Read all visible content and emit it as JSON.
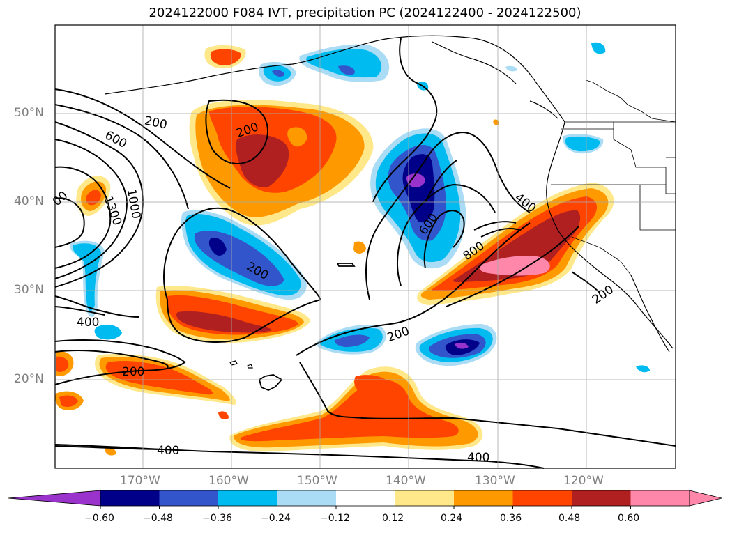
{
  "title": "2024122000 F084 IVT, precipitation PC (2024122400 - 2024122500)",
  "lat_labels": [
    "50°N",
    "40°N",
    "30°N",
    "20°N"
  ],
  "lon_labels": [
    "170°W",
    "160°W",
    "150°W",
    "140°W",
    "130°W",
    "120°W"
  ],
  "contour_labels": [
    "200",
    "200",
    "600",
    "1300",
    "1000",
    "400",
    "200",
    "200",
    "400",
    "600",
    "800",
    "200",
    "200",
    "400",
    "400",
    "00"
  ],
  "colorbar": {
    "ticks": [
      "−0.60",
      "−0.48",
      "−0.36",
      "−0.24",
      "−0.12",
      "0.12",
      "0.24",
      "0.36",
      "0.48",
      "0.60"
    ],
    "colors": [
      "#9933cc",
      "#000088",
      "#3355cc",
      "#00bbf0",
      "#aaddf5",
      "#ffffff",
      "#ffe88a",
      "#ff9900",
      "#ff4400",
      "#b02020",
      "#ff88aa"
    ]
  },
  "colors": {
    "neg_strong": "#000088",
    "neg_mid": "#3355cc",
    "neg_light": "#00bbf0",
    "neg_pale": "#aaddf5",
    "pos_pale": "#ffe88a",
    "pos_mid": "#ff9900",
    "pos_strong": "#ff4400",
    "pos_deep": "#b02020",
    "pos_max": "#ff88aa"
  }
}
